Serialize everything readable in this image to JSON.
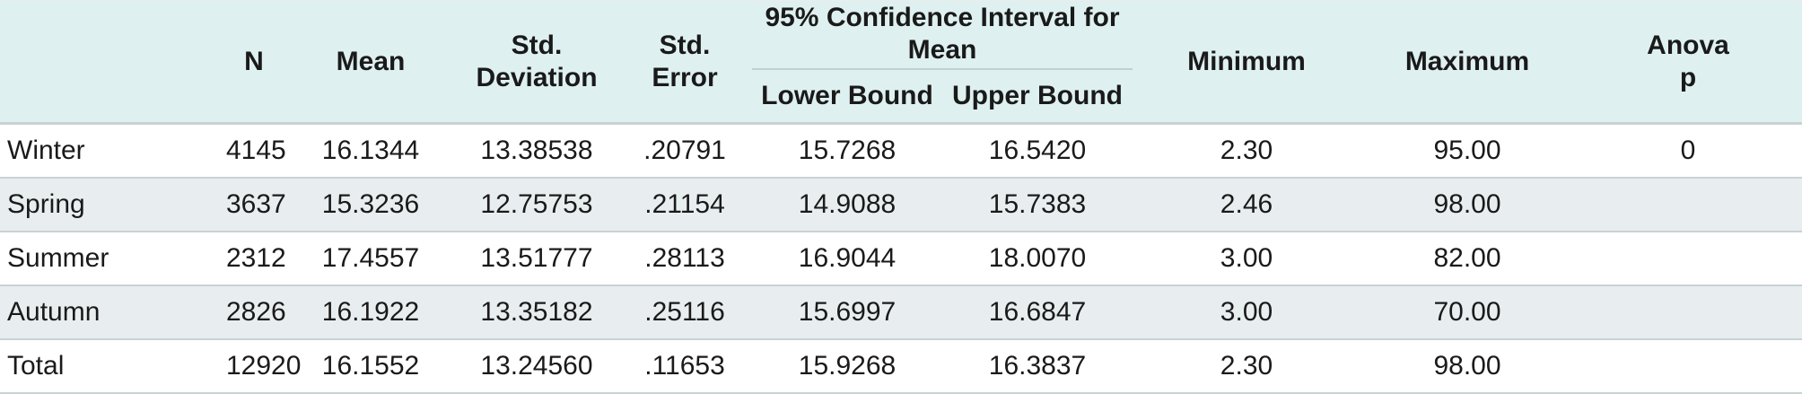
{
  "headers": {
    "n": "N",
    "mean": "Mean",
    "std_dev_line1": "Std.",
    "std_dev_line2": "Deviation",
    "std_err_line1": "Std.",
    "std_err_line2": "Error",
    "ci": "95% Confidence Interval for Mean",
    "lower": "Lower Bound",
    "upper": "Upper Bound",
    "min": "Minimum",
    "max": "Maximum",
    "anova_line1": "Anova",
    "anova_line2": "p"
  },
  "rows": [
    {
      "label": "Winter",
      "n": "4145",
      "mean": "16.1344",
      "sd": "13.38538",
      "se": ".20791",
      "lower": "15.7268",
      "upper": "16.5420",
      "min": "2.30",
      "max": "95.00",
      "p": "0"
    },
    {
      "label": "Spring",
      "n": "3637",
      "mean": "15.3236",
      "sd": "12.75753",
      "se": ".21154",
      "lower": "14.9088",
      "upper": "15.7383",
      "min": "2.46",
      "max": "98.00",
      "p": ""
    },
    {
      "label": "Summer",
      "n": "2312",
      "mean": "17.4557",
      "sd": "13.51777",
      "se": ".28113",
      "lower": "16.9044",
      "upper": "18.0070",
      "min": "3.00",
      "max": "82.00",
      "p": ""
    },
    {
      "label": "Autumn",
      "n": "2826",
      "mean": "16.1922",
      "sd": "13.35182",
      "se": ".25116",
      "lower": "15.6997",
      "upper": "16.6847",
      "min": "3.00",
      "max": "70.00",
      "p": ""
    },
    {
      "label": "Total",
      "n": "12920",
      "mean": "16.1552",
      "sd": "13.24560",
      "se": ".11653",
      "lower": "15.9268",
      "upper": "16.3837",
      "min": "2.30",
      "max": "98.00",
      "p": ""
    }
  ]
}
